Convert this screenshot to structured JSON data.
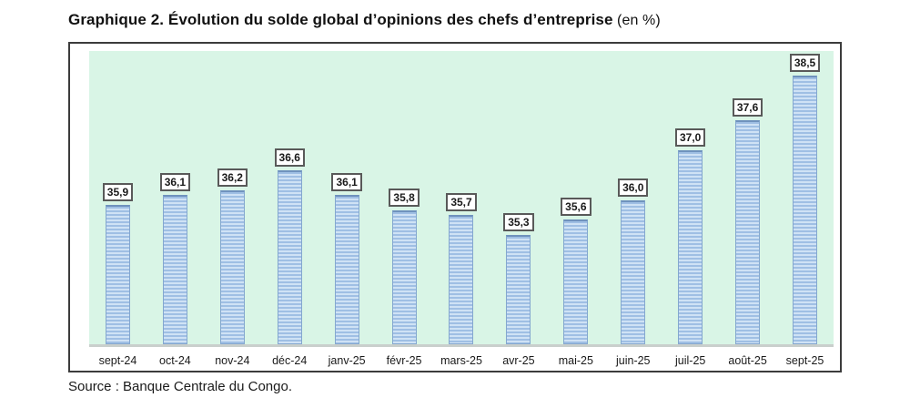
{
  "title": {
    "main": "Graphique 2. Évolution du solde global d’opinions des chefs d’entreprise",
    "suffix": " (en %)"
  },
  "source": "Source : Banque Centrale du Congo.",
  "chart_data": {
    "type": "bar",
    "title": "Graphique 2. Évolution du solde global d’opinions des chefs d’entreprise (en %)",
    "categories": [
      "sept-24",
      "oct-24",
      "nov-24",
      "déc-24",
      "janv-25",
      "févr-25",
      "mars-25",
      "avr-25",
      "mai-25",
      "juin-25",
      "juil-25",
      "août-25",
      "sept-25"
    ],
    "values": [
      35.9,
      36.1,
      36.2,
      36.6,
      36.1,
      35.8,
      35.7,
      35.3,
      35.6,
      36.0,
      37.0,
      37.6,
      38.5
    ],
    "value_labels": [
      "35,9",
      "36,1",
      "36,2",
      "36,6",
      "36,1",
      "35,8",
      "35,7",
      "35,3",
      "35,6",
      "36,0",
      "37,0",
      "37,6",
      "38,5"
    ],
    "xlabel": "",
    "ylabel": "",
    "ylim": [
      33,
      39
    ],
    "grid": false,
    "legend": "none",
    "data_labels": "boxed above bars",
    "colors": {
      "plot_background": "#d9f5e6",
      "bar_fill": "#9fbfe4",
      "bar_stripe": "#cfe2f5",
      "bar_border": "#84a7cf",
      "baseline": "#c9cfcc",
      "frame_border": "#3c3c3c",
      "label_box_border": "#595959",
      "label_box_background": "#ffffff"
    }
  }
}
